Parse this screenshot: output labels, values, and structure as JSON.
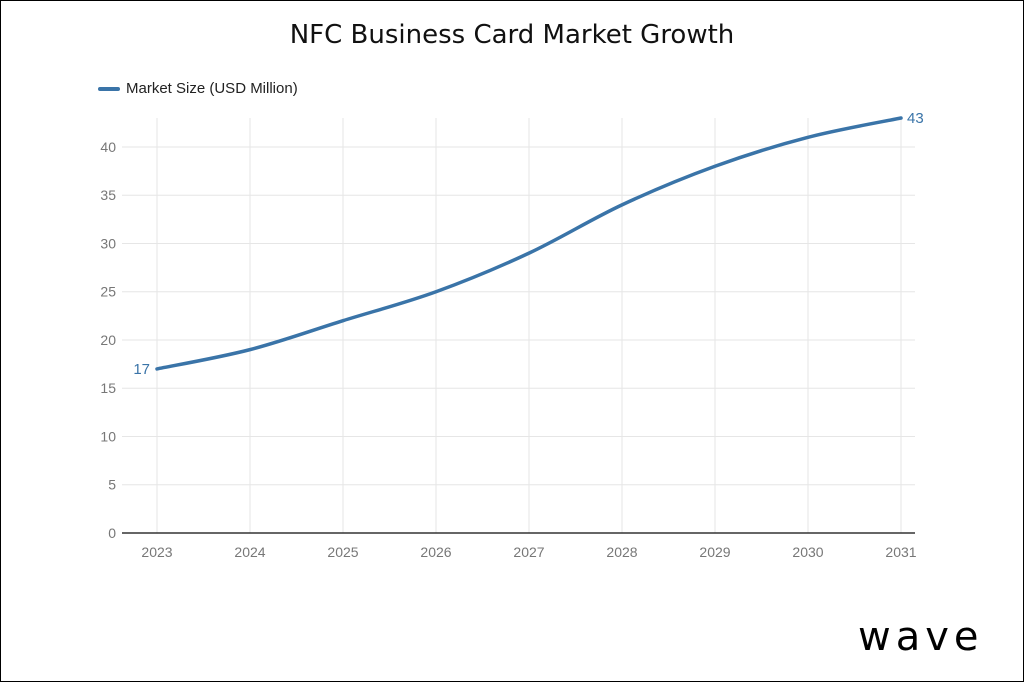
{
  "chart_data": {
    "type": "line",
    "title": "NFC Business Card Market Growth",
    "xlabel": "",
    "ylabel": "",
    "x": [
      "2023",
      "2024",
      "2025",
      "2026",
      "2027",
      "2028",
      "2029",
      "2030",
      "2031"
    ],
    "series": [
      {
        "name": "Market Size (USD Million)",
        "values": [
          17,
          19,
          22,
          25,
          29,
          34,
          38,
          41,
          43
        ],
        "color": "#3A74A8"
      }
    ],
    "ylim": [
      0,
      43
    ],
    "yticks": [
      0,
      5,
      10,
      15,
      20,
      25,
      30,
      35,
      40
    ],
    "data_labels": [
      {
        "index": 0,
        "text": "17"
      },
      {
        "index": 8,
        "text": "43"
      }
    ],
    "grid": true,
    "legend": "top-left"
  },
  "brand": {
    "logo_text": "wave"
  }
}
